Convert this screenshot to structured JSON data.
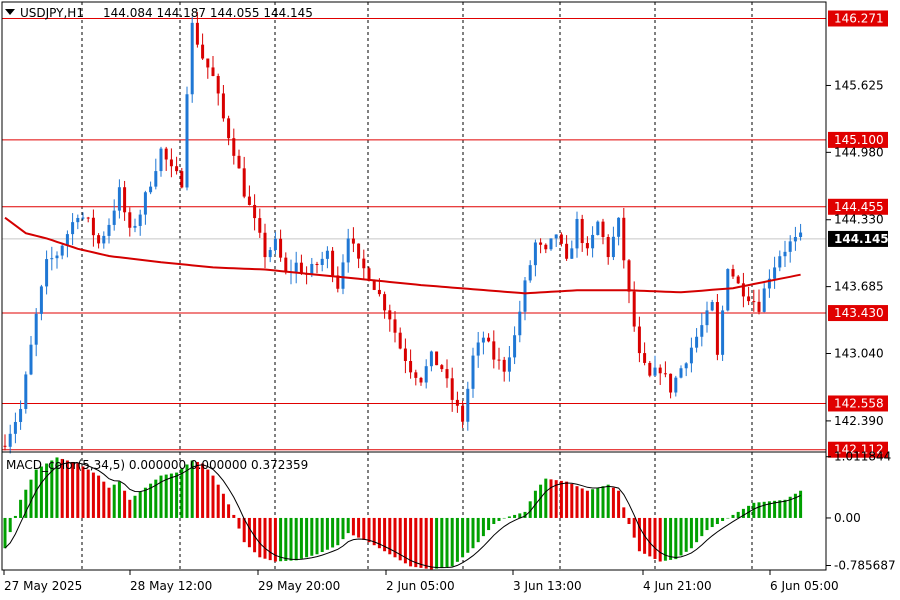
{
  "header": {
    "symbol": "USDJPY,H1",
    "ohlc": "144.084 144.187 144.055 144.145"
  },
  "macd_header": "MACD_color(5,34,5) 0.000000 0.000000 0.372359",
  "colors": {
    "bull": "#1f77d4",
    "bear": "#d80000",
    "ma": "#d40000",
    "level": "#e00000",
    "macd_up": "#00a000",
    "macd_down": "#e00000",
    "signal": "#000000",
    "grid": "#000000"
  },
  "chart_data": [
    {
      "type": "candlestick",
      "title": "USDJPY,H1",
      "ylim": [
        142.09,
        146.43
      ],
      "price_ticks": [
        "145.625",
        "144.980",
        "144.330",
        "143.685",
        "143.040",
        "142.390"
      ],
      "x_labels": [
        "27 May 2025",
        "28 May 12:00",
        "29 May 20:00",
        "2 Jun 05:00",
        "3 Jun 13:00",
        "4 Jun 21:00",
        "6 Jun 05:00"
      ],
      "levels": [
        "146.271",
        "145.100",
        "144.455",
        "143.430",
        "142.558",
        "142.112"
      ],
      "current_price": "144.145",
      "close_path": [
        [
          0,
          142.2
        ],
        [
          3,
          142.5
        ],
        [
          6,
          143.4
        ],
        [
          8,
          143.9
        ],
        [
          10,
          144.0
        ],
        [
          12,
          144.2
        ],
        [
          14,
          144.4
        ],
        [
          16,
          144.3
        ],
        [
          18,
          144.1
        ],
        [
          20,
          144.3
        ],
        [
          22,
          144.6
        ],
        [
          24,
          144.2
        ],
        [
          26,
          144.4
        ],
        [
          28,
          144.7
        ],
        [
          30,
          145.0
        ],
        [
          32,
          144.8
        ],
        [
          34,
          144.7
        ],
        [
          35,
          145.6
        ],
        [
          36,
          146.2
        ],
        [
          38,
          145.9
        ],
        [
          40,
          145.7
        ],
        [
          42,
          145.3
        ],
        [
          44,
          145.0
        ],
        [
          46,
          144.6
        ],
        [
          48,
          144.3
        ],
        [
          50,
          144.0
        ],
        [
          52,
          144.1
        ],
        [
          54,
          143.8
        ],
        [
          56,
          143.9
        ],
        [
          58,
          143.8
        ],
        [
          60,
          143.9
        ],
        [
          62,
          144.0
        ],
        [
          64,
          143.7
        ],
        [
          66,
          144.2
        ],
        [
          68,
          143.9
        ],
        [
          70,
          143.8
        ],
        [
          72,
          143.6
        ],
        [
          74,
          143.4
        ],
        [
          76,
          143.1
        ],
        [
          78,
          142.9
        ],
        [
          80,
          142.8
        ],
        [
          82,
          143.0
        ],
        [
          84,
          142.9
        ],
        [
          86,
          142.6
        ],
        [
          88,
          142.4
        ],
        [
          90,
          143.0
        ],
        [
          92,
          143.2
        ],
        [
          94,
          143.0
        ],
        [
          96,
          142.9
        ],
        [
          98,
          143.2
        ],
        [
          100,
          143.7
        ],
        [
          102,
          144.1
        ],
        [
          104,
          144.0
        ],
        [
          106,
          144.2
        ],
        [
          108,
          143.9
        ],
        [
          110,
          144.3
        ],
        [
          112,
          144.0
        ],
        [
          114,
          144.3
        ],
        [
          116,
          144.0
        ],
        [
          118,
          144.3
        ],
        [
          120,
          143.6
        ],
        [
          122,
          143.0
        ],
        [
          124,
          142.8
        ],
        [
          126,
          142.9
        ],
        [
          128,
          142.7
        ],
        [
          130,
          142.9
        ],
        [
          132,
          143.1
        ],
        [
          134,
          143.3
        ],
        [
          136,
          143.5
        ],
        [
          137,
          143.0
        ],
        [
          139,
          143.9
        ],
        [
          141,
          143.7
        ],
        [
          143,
          143.6
        ],
        [
          145,
          143.5
        ],
        [
          147,
          143.8
        ],
        [
          149,
          144.0
        ],
        [
          151,
          144.1
        ],
        [
          153,
          144.15
        ]
      ],
      "ma_path": [
        [
          0,
          144.35
        ],
        [
          4,
          144.2
        ],
        [
          8,
          144.15
        ],
        [
          14,
          144.05
        ],
        [
          20,
          143.98
        ],
        [
          30,
          143.92
        ],
        [
          40,
          143.87
        ],
        [
          50,
          143.85
        ],
        [
          60,
          143.8
        ],
        [
          70,
          143.75
        ],
        [
          80,
          143.7
        ],
        [
          90,
          143.66
        ],
        [
          100,
          143.62
        ],
        [
          110,
          143.65
        ],
        [
          120,
          143.65
        ],
        [
          130,
          143.63
        ],
        [
          140,
          143.67
        ],
        [
          153,
          143.8
        ]
      ]
    },
    {
      "type": "bar",
      "title": "MACD_color(5,34,5)",
      "ylim": [
        -0.86,
        1.09
      ],
      "y_ticks": [
        "1.011844",
        "0.00",
        "-0.785687"
      ],
      "hist_path": [
        [
          0,
          -0.5
        ],
        [
          3,
          0.3
        ],
        [
          6,
          0.8
        ],
        [
          10,
          1.0
        ],
        [
          14,
          0.9
        ],
        [
          18,
          0.7
        ],
        [
          20,
          0.5
        ],
        [
          22,
          0.6
        ],
        [
          24,
          0.3
        ],
        [
          27,
          0.5
        ],
        [
          30,
          0.7
        ],
        [
          33,
          0.75
        ],
        [
          36,
          0.95
        ],
        [
          38,
          0.9
        ],
        [
          40,
          0.7
        ],
        [
          42,
          0.4
        ],
        [
          44,
          0.05
        ],
        [
          46,
          -0.4
        ],
        [
          49,
          -0.65
        ],
        [
          52,
          -0.72
        ],
        [
          56,
          -0.7
        ],
        [
          60,
          -0.6
        ],
        [
          64,
          -0.45
        ],
        [
          66,
          -0.25
        ],
        [
          70,
          -0.4
        ],
        [
          74,
          -0.6
        ],
        [
          78,
          -0.8
        ],
        [
          82,
          -0.85
        ],
        [
          86,
          -0.8
        ],
        [
          88,
          -0.65
        ],
        [
          90,
          -0.5
        ],
        [
          94,
          -0.1
        ],
        [
          96,
          0.0
        ],
        [
          100,
          0.1
        ],
        [
          102,
          0.45
        ],
        [
          104,
          0.65
        ],
        [
          108,
          0.6
        ],
        [
          112,
          0.45
        ],
        [
          116,
          0.55
        ],
        [
          118,
          0.45
        ],
        [
          120,
          -0.1
        ],
        [
          122,
          -0.55
        ],
        [
          126,
          -0.72
        ],
        [
          129,
          -0.68
        ],
        [
          132,
          -0.5
        ],
        [
          135,
          -0.2
        ],
        [
          138,
          -0.05
        ],
        [
          140,
          0.05
        ],
        [
          144,
          0.25
        ],
        [
          150,
          0.3
        ],
        [
          153,
          0.45
        ]
      ]
    }
  ]
}
